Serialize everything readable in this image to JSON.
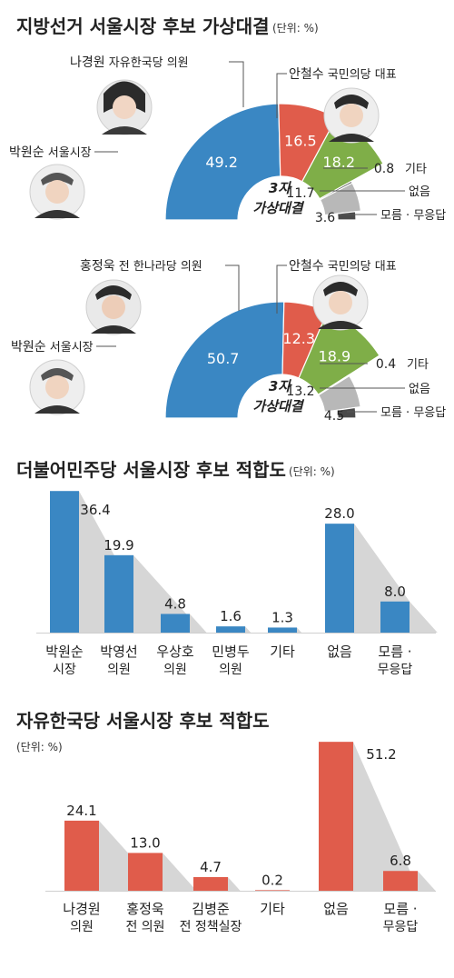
{
  "section1": {
    "title": "지방선거 서울시장 후보 가상대결",
    "unit": "(단위: %)",
    "center": [
      "3자",
      "가상대결"
    ],
    "candidates": [
      {
        "name": "박원순",
        "role": "서울시장"
      },
      {
        "name": "나경원",
        "role": "자유한국당 의원"
      },
      {
        "name": "안철수",
        "role": "국민의당 대표"
      }
    ]
  },
  "section2": {
    "center": [
      "3자",
      "가상대결"
    ],
    "candidates": [
      {
        "name": "박원순",
        "role": "서울시장"
      },
      {
        "name": "홍정욱",
        "role": "전 한나라당 의원"
      },
      {
        "name": "안철수",
        "role": "국민의당 대표"
      }
    ]
  },
  "section3": {
    "title": "더불어민주당 서울시장 후보 적합도",
    "unit": "(단위: %)"
  },
  "section4": {
    "title": "자유한국당 서울시장 후보 적합도",
    "unit": "(단위: %)"
  },
  "colors": {
    "blue": "#3a87c3",
    "red": "#e05c4b",
    "green": "#7fae48",
    "gray": "#b8b8b8",
    "dark": "#4a4a4a",
    "shadow": "#d6d6d6"
  },
  "chart_data": [
    {
      "type": "pie",
      "title": "지방선거 서울시장 후보 가상대결",
      "categories": [
        "박원순",
        "나경원",
        "안철수",
        "기타",
        "없음",
        "모름 · 무응답"
      ],
      "values": [
        49.2,
        16.5,
        18.2,
        0.8,
        11.7,
        3.6
      ],
      "labels": [
        "49.2",
        "16.5",
        "18.2",
        "0.8",
        "11.7",
        "3.6"
      ],
      "legend_labels": [
        "기타",
        "없음",
        "모름 · 무응답"
      ]
    },
    {
      "type": "pie",
      "categories": [
        "박원순",
        "홍정욱",
        "안철수",
        "기타",
        "없음",
        "모름 · 무응답"
      ],
      "values": [
        50.7,
        12.3,
        18.9,
        0.4,
        13.2,
        4.5
      ],
      "labels": [
        "50.7",
        "12.3",
        "18.9",
        "0.4",
        "13.2",
        "4.5"
      ],
      "legend_labels": [
        "기타",
        "없음",
        "모름 · 무응답"
      ]
    },
    {
      "type": "bar",
      "title": "더불어민주당 서울시장 후보 적합도",
      "categories": [
        [
          "박원순",
          "시장"
        ],
        [
          "박영선",
          "의원"
        ],
        [
          "우상호",
          "의원"
        ],
        [
          "민병두",
          "의원"
        ],
        [
          "기타"
        ],
        [
          "없음"
        ],
        [
          "모름 ·",
          "무응답"
        ]
      ],
      "values": [
        36.4,
        19.9,
        4.8,
        1.6,
        1.3,
        28.0,
        8.0
      ],
      "labels": [
        "36.4",
        "19.9",
        "4.8",
        "1.6",
        "1.3",
        "28.0",
        "8.0"
      ]
    },
    {
      "type": "bar",
      "title": "자유한국당 서울시장 후보 적합도",
      "categories": [
        [
          "나경원",
          "의원"
        ],
        [
          "홍정욱",
          "전 의원"
        ],
        [
          "김병준",
          "전 정책실장"
        ],
        [
          "기타"
        ],
        [
          "없음"
        ],
        [
          "모름 ·",
          "무응답"
        ]
      ],
      "values": [
        24.1,
        13.0,
        4.7,
        0.2,
        51.2,
        6.8
      ],
      "labels": [
        "24.1",
        "13.0",
        "4.7",
        "0.2",
        "51.2",
        "6.8"
      ]
    }
  ]
}
